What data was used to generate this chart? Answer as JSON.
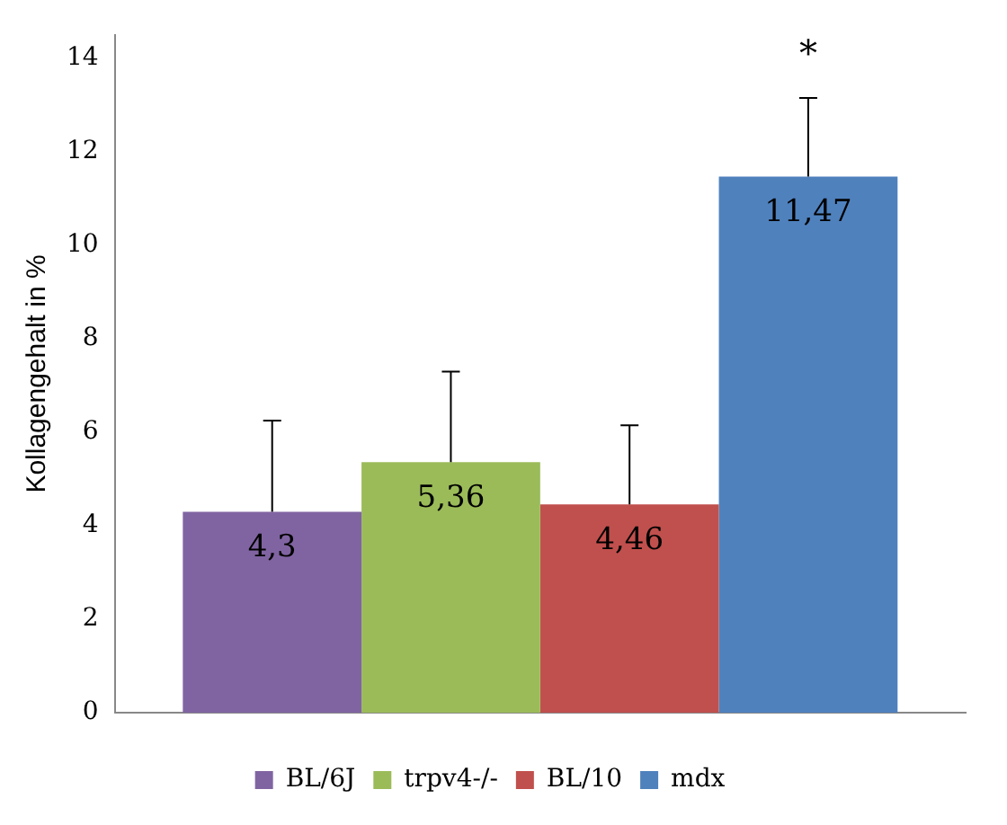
{
  "chart_data": {
    "type": "bar",
    "ylabel": "Kollagengehalt in %",
    "categories": [
      null
    ],
    "series": [
      {
        "name": "BL/6J",
        "color": "#8064a2",
        "values": [
          4.3
        ],
        "errors": [
          [
            4.3,
            6.25
          ]
        ],
        "value_labels": [
          "4,3"
        ]
      },
      {
        "name": "trpv4-/-",
        "color": "#9bbb59",
        "values": [
          5.36
        ],
        "errors": [
          [
            5.36,
            7.3
          ]
        ],
        "value_labels": [
          "5,36"
        ]
      },
      {
        "name": "BL/10",
        "color": "#c0504d",
        "values": [
          4.46
        ],
        "errors": [
          [
            4.46,
            6.15
          ]
        ],
        "value_labels": [
          "4,46"
        ]
      },
      {
        "name": "mdx",
        "color": "#4f81bd",
        "values": [
          11.47
        ],
        "errors": [
          [
            11.47,
            13.15
          ]
        ],
        "value_labels": [
          "11,47"
        ]
      }
    ],
    "annotations": [
      "*"
    ],
    "ylim": [
      0,
      14.5
    ],
    "yticks": [
      0,
      2,
      4,
      6,
      8,
      10,
      12,
      14
    ],
    "grid": false,
    "legend": "bottom"
  }
}
